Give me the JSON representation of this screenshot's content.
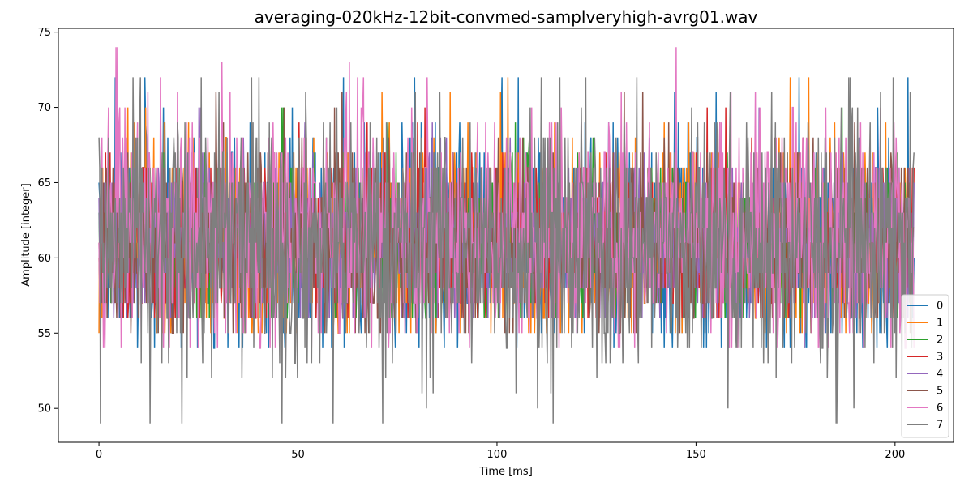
{
  "chart_data": {
    "type": "line",
    "title": "averaging-020kHz-12bit-convmed-samplveryhigh-avrg01.wav",
    "xlabel": "Time [ms]",
    "ylabel": "Amplitude [integer]",
    "xlim": [
      -10.2,
      214.7
    ],
    "ylim": [
      47.75,
      75.25
    ],
    "xticks": [
      0,
      50,
      100,
      150,
      200
    ],
    "yticks": [
      50,
      55,
      60,
      65,
      70,
      75
    ],
    "xtick_labels": [
      "0",
      "50",
      "100",
      "150",
      "200"
    ],
    "ytick_labels": [
      "50",
      "55",
      "60",
      "65",
      "70",
      "75"
    ],
    "grid": false,
    "legend_placement": "lower-right",
    "x_range_ms": [
      0,
      204.75
    ],
    "series": [
      {
        "name": "0",
        "color": "#1f77b4",
        "min": 54,
        "max": 72,
        "mean": 61.2
      },
      {
        "name": "1",
        "color": "#ff7f0e",
        "min": 55,
        "max": 72,
        "mean": 61.3
      },
      {
        "name": "2",
        "color": "#2ca02c",
        "min": 56,
        "max": 70,
        "mean": 61.1
      },
      {
        "name": "3",
        "color": "#d62728",
        "min": 56,
        "max": 70,
        "mean": 61.1
      },
      {
        "name": "4",
        "color": "#9467bd",
        "min": 56,
        "max": 70,
        "mean": 61.1
      },
      {
        "name": "5",
        "color": "#8c564b",
        "min": 55,
        "max": 71,
        "mean": 61.2
      },
      {
        "name": "6",
        "color": "#e377c2",
        "min": 54,
        "max": 74,
        "mean": 62.0
      },
      {
        "name": "7",
        "color": "#7f7f7f",
        "min": 49,
        "max": 72,
        "mean": 60.8
      }
    ]
  }
}
